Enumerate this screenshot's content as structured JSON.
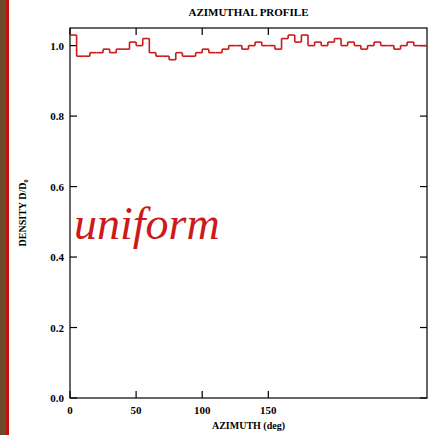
{
  "chart_data": {
    "type": "histogram",
    "title": "AZIMUTHAL PROFILE",
    "x_label": "AZIMUTH (deg)",
    "y_label": "DENSITY D/D₀",
    "annotations": [
      "uniform"
    ],
    "bins": [
      0,
      5,
      10,
      15,
      20,
      25,
      30,
      35,
      40,
      45,
      50,
      55,
      60,
      65,
      70,
      75,
      80,
      85,
      90,
      95,
      100,
      105,
      110,
      115,
      120,
      125,
      130,
      135,
      140,
      145,
      150,
      155,
      160,
      165,
      170,
      175,
      180,
      185,
      190,
      195,
      200,
      205,
      210,
      215,
      220,
      225,
      230,
      235,
      240,
      245,
      250,
      255,
      260,
      265,
      270
    ],
    "values": [
      1.03,
      0.97,
      0.97,
      0.98,
      0.98,
      0.99,
      0.98,
      0.99,
      0.99,
      1.01,
      1.0,
      1.02,
      0.98,
      0.97,
      0.97,
      0.96,
      0.98,
      0.97,
      0.97,
      0.98,
      0.99,
      0.98,
      0.98,
      0.99,
      1.0,
      1.0,
      0.99,
      1.0,
      1.01,
      1.0,
      1.0,
      0.99,
      1.02,
      1.03,
      1.01,
      1.03,
      1.0,
      1.01,
      1.0,
      1.01,
      1.02,
      1.0,
      1.01,
      1.0,
      0.99,
      1.0,
      1.01,
      1.0,
      1.0,
      0.99,
      1.0,
      1.01,
      1.0,
      1.0
    ],
    "color": "#cc1a1a",
    "line_style": "step",
    "xlim": [
      0,
      270
    ],
    "ylim": [
      0,
      1.05
    ],
    "xticks": [
      0,
      50,
      100,
      150
    ],
    "yticks": [
      {
        "value": 0,
        "label": "0.0"
      },
      {
        "value": 0.2,
        "label": "0.2"
      },
      {
        "value": 0.4,
        "label": "0.4"
      },
      {
        "value": 0.6,
        "label": "0.6"
      },
      {
        "value": 0.8,
        "label": "0.8"
      },
      {
        "value": 1,
        "label": "1.0"
      }
    ],
    "grid": false
  }
}
